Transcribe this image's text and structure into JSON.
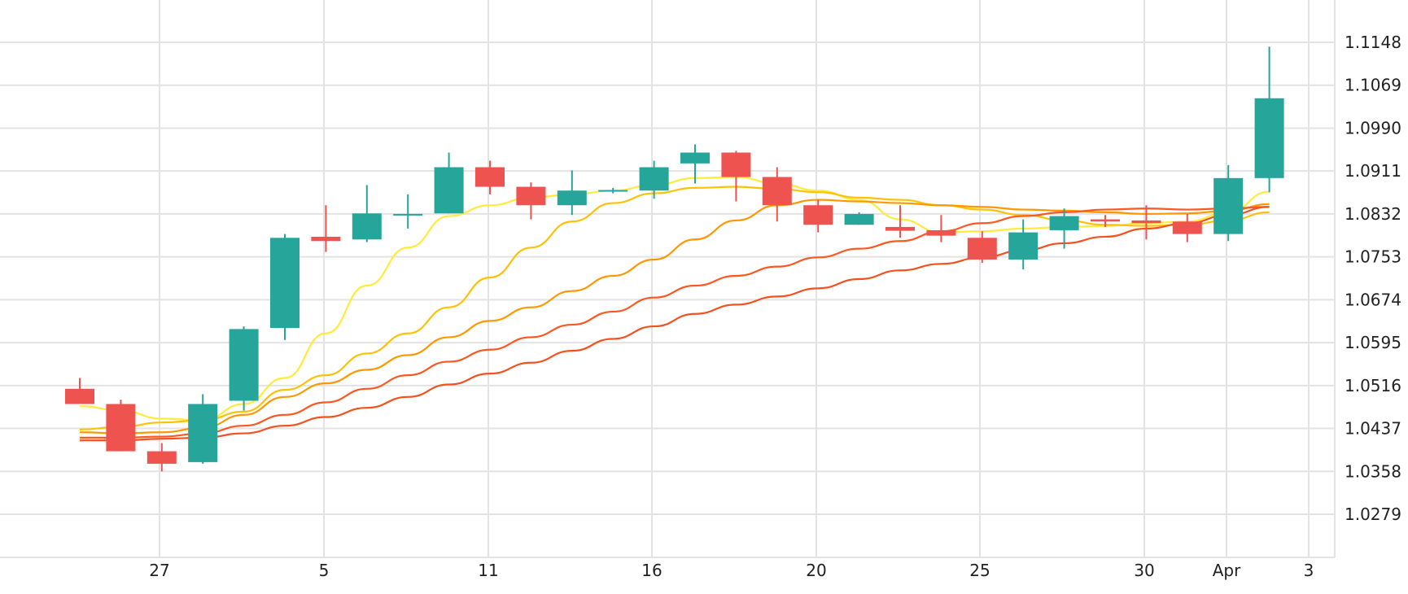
{
  "chart_data": {
    "type": "candlestick",
    "title": "",
    "xlabel": "",
    "ylabel": "",
    "ylim": [
      1.02,
      1.12
    ],
    "y_ticks": [
      "1.1148",
      "1.1069",
      "1.0990",
      "1.0911",
      "1.0832",
      "1.0753",
      "1.0674",
      "1.0595",
      "1.0516",
      "1.0437",
      "1.0358",
      "1.0279"
    ],
    "x_tick_labels": [
      "27",
      "5",
      "11",
      "16",
      "20",
      "25",
      "30",
      "Apr",
      "3"
    ],
    "x_tick_positions": [
      1,
      5,
      9,
      13,
      17,
      21,
      25,
      27,
      29
    ],
    "grid": true,
    "colors": {
      "up": "#26a69a",
      "down": "#ef5350",
      "ma_series": [
        "#ffeb3b",
        "#ffc107",
        "#ff9800",
        "#ff5722",
        "#f4511e"
      ]
    },
    "candles": [
      {
        "o": 1.051,
        "h": 1.053,
        "l": 1.0485,
        "c": 1.0482
      },
      {
        "o": 1.0482,
        "h": 1.049,
        "l": 1.0395,
        "c": 1.0395
      },
      {
        "o": 1.0395,
        "h": 1.041,
        "l": 1.0358,
        "c": 1.0372
      },
      {
        "o": 1.0375,
        "h": 1.05,
        "l": 1.0372,
        "c": 1.0482
      },
      {
        "o": 1.0488,
        "h": 1.0625,
        "l": 1.047,
        "c": 1.062
      },
      {
        "o": 1.0622,
        "h": 1.0795,
        "l": 1.06,
        "c": 1.0788
      },
      {
        "o": 1.079,
        "h": 1.0848,
        "l": 1.0762,
        "c": 1.0782
      },
      {
        "o": 1.0785,
        "h": 1.0885,
        "l": 1.078,
        "c": 1.0833
      },
      {
        "o": 1.0832,
        "h": 1.0868,
        "l": 1.0805,
        "c": 1.0832
      },
      {
        "o": 1.0833,
        "h": 1.0945,
        "l": 1.0833,
        "c": 1.0918
      },
      {
        "o": 1.0918,
        "h": 1.093,
        "l": 1.0868,
        "c": 1.0882
      },
      {
        "o": 1.0882,
        "h": 1.089,
        "l": 1.0822,
        "c": 1.0848
      },
      {
        "o": 1.0848,
        "h": 1.0912,
        "l": 1.083,
        "c": 1.0875
      },
      {
        "o": 1.0876,
        "h": 1.088,
        "l": 1.087,
        "c": 1.0876
      },
      {
        "o": 1.0875,
        "h": 1.093,
        "l": 1.086,
        "c": 1.0918
      },
      {
        "o": 1.0925,
        "h": 1.096,
        "l": 1.0888,
        "c": 1.0945
      },
      {
        "o": 1.0945,
        "h": 1.0948,
        "l": 1.0855,
        "c": 1.09
      },
      {
        "o": 1.09,
        "h": 1.0918,
        "l": 1.0818,
        "c": 1.0848
      },
      {
        "o": 1.0848,
        "h": 1.0858,
        "l": 1.0798,
        "c": 1.0812
      },
      {
        "o": 1.0812,
        "h": 1.0835,
        "l": 1.0812,
        "c": 1.0832
      },
      {
        "o": 1.0808,
        "h": 1.0848,
        "l": 1.0788,
        "c": 1.0801
      },
      {
        "o": 1.0802,
        "h": 1.083,
        "l": 1.078,
        "c": 1.0792
      },
      {
        "o": 1.0788,
        "h": 1.08,
        "l": 1.0742,
        "c": 1.0748
      },
      {
        "o": 1.0748,
        "h": 1.0822,
        "l": 1.073,
        "c": 1.0798
      },
      {
        "o": 1.0802,
        "h": 1.0842,
        "l": 1.0768,
        "c": 1.0828
      },
      {
        "o": 1.0822,
        "h": 1.083,
        "l": 1.0808,
        "c": 1.0818
      },
      {
        "o": 1.082,
        "h": 1.0848,
        "l": 1.0785,
        "c": 1.0815
      },
      {
        "o": 1.0818,
        "h": 1.0832,
        "l": 1.078,
        "c": 1.0795
      },
      {
        "o": 1.0795,
        "h": 1.0922,
        "l": 1.0782,
        "c": 1.0898
      },
      {
        "o": 1.0898,
        "h": 1.114,
        "l": 1.0872,
        "c": 1.1045
      }
    ],
    "ma_series": [
      {
        "values": [
          1.0478,
          1.047,
          1.0455,
          1.0452,
          1.0482,
          1.053,
          1.0612,
          1.07,
          1.077,
          1.0828,
          1.0848,
          1.0862,
          1.0868,
          1.0875,
          1.0885,
          1.0898,
          1.09,
          1.0888,
          1.0875,
          1.0858,
          1.0822,
          1.0798,
          1.08,
          1.0805,
          1.0808,
          1.081,
          1.0815,
          1.0818,
          1.0835,
          1.0873
        ]
      },
      {
        "values": [
          1.0435,
          1.044,
          1.0448,
          1.0452,
          1.0468,
          1.0508,
          1.0535,
          1.0575,
          1.0612,
          1.066,
          1.0715,
          1.077,
          1.0818,
          1.0852,
          1.087,
          1.088,
          1.0882,
          1.0878,
          1.0872,
          1.0862,
          1.0858,
          1.0848,
          1.084,
          1.083,
          1.082,
          1.0812,
          1.081,
          1.0812,
          1.082,
          1.0835
        ]
      },
      {
        "values": [
          1.043,
          1.0428,
          1.043,
          1.0438,
          1.0462,
          1.0495,
          1.052,
          1.0545,
          1.0572,
          1.0605,
          1.0635,
          1.066,
          1.069,
          1.0718,
          1.0748,
          1.0785,
          1.082,
          1.0848,
          1.0858,
          1.0855,
          1.0852,
          1.0848,
          1.0845,
          1.084,
          1.0838,
          1.0835,
          1.0832,
          1.0833,
          1.0838,
          1.085
        ]
      },
      {
        "values": [
          1.042,
          1.042,
          1.0422,
          1.0428,
          1.0442,
          1.0462,
          1.0485,
          1.051,
          1.0535,
          1.056,
          1.0582,
          1.0605,
          1.0628,
          1.0652,
          1.0678,
          1.07,
          1.0718,
          1.0735,
          1.0752,
          1.0768,
          1.0782,
          1.08,
          1.0815,
          1.0828,
          1.0835,
          1.084,
          1.0842,
          1.084,
          1.0842,
          1.0845
        ]
      },
      {
        "values": [
          1.0415,
          1.0415,
          1.0418,
          1.042,
          1.0428,
          1.0442,
          1.0458,
          1.0475,
          1.0495,
          1.0518,
          1.0538,
          1.0558,
          1.058,
          1.0602,
          1.0625,
          1.0648,
          1.0665,
          1.068,
          1.0695,
          1.0712,
          1.0728,
          1.074,
          1.0752,
          1.0765,
          1.0778,
          1.079,
          1.0805,
          1.0815,
          1.083,
          1.0845
        ]
      }
    ]
  }
}
